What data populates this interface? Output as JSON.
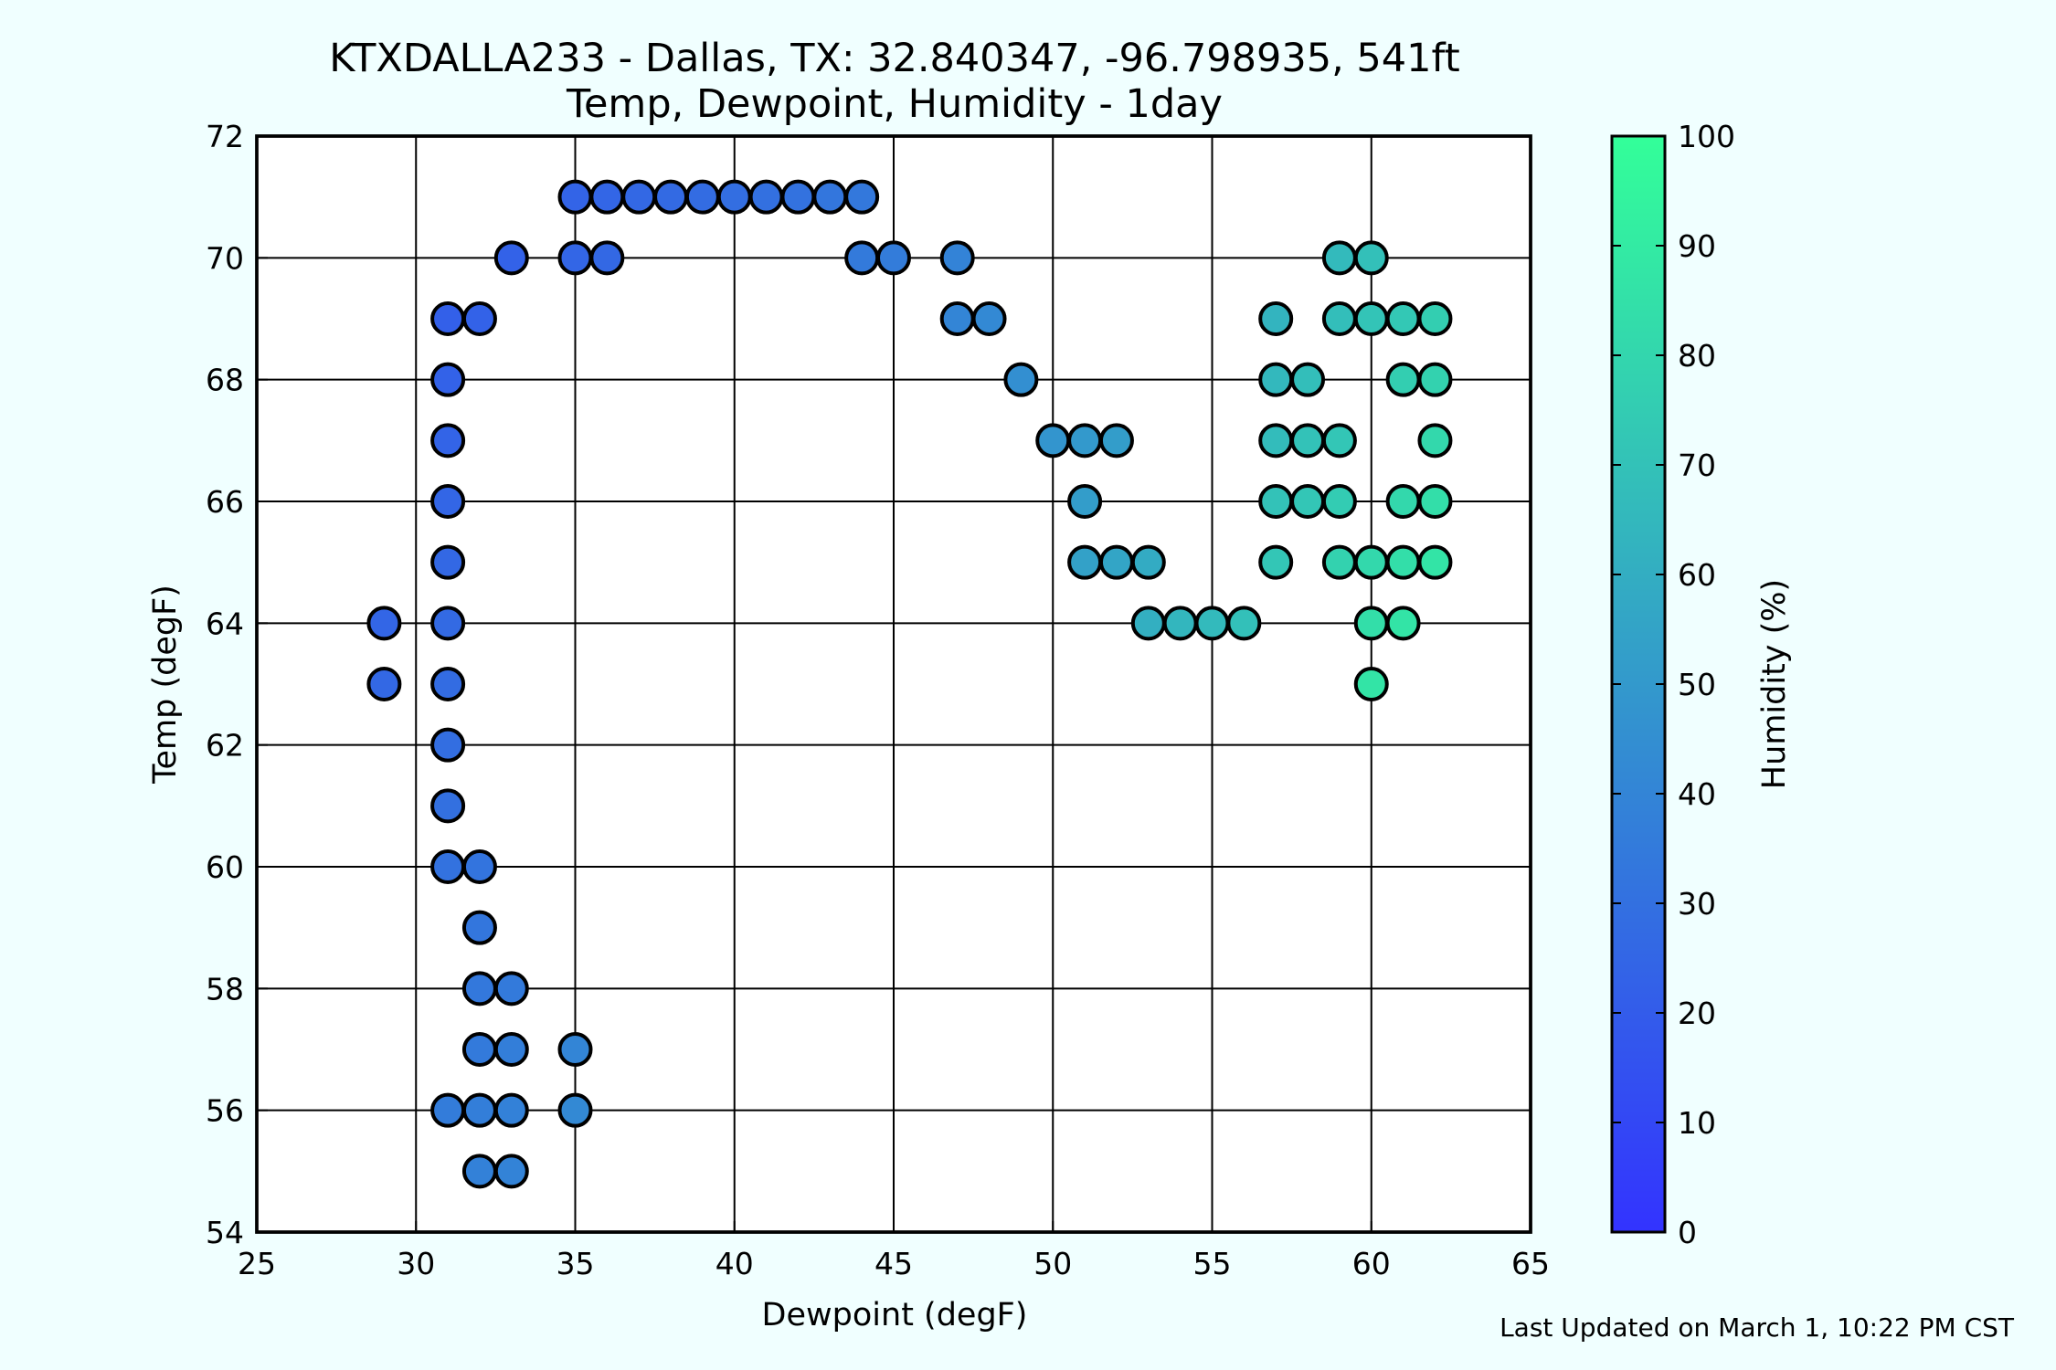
{
  "chart_data": {
    "type": "scatter",
    "title_line1": "KTXDALLA233 - Dallas, TX: 32.840347, -96.798935, 541ft",
    "title_line2": "Temp, Dewpoint, Humidity - 1day",
    "xlabel": "Dewpoint (degF)",
    "ylabel": "Temp (degF)",
    "xlim": [
      25,
      65
    ],
    "ylim": [
      54,
      72
    ],
    "xticks": [
      25,
      30,
      35,
      40,
      45,
      50,
      55,
      60,
      65
    ],
    "yticks": [
      54,
      56,
      58,
      60,
      62,
      64,
      66,
      68,
      70,
      72
    ],
    "grid": true,
    "colorbar": {
      "label": "Humidity (%)",
      "range": [
        0,
        100
      ],
      "ticks": [
        0,
        10,
        20,
        30,
        40,
        50,
        60,
        70,
        80,
        90,
        100
      ],
      "color_low": "#3333ff",
      "color_high": "#33ff99"
    },
    "points": [
      {
        "x": 35,
        "y": 71,
        "h": 24
      },
      {
        "x": 36,
        "y": 71,
        "h": 25
      },
      {
        "x": 37,
        "y": 71,
        "h": 26
      },
      {
        "x": 38,
        "y": 71,
        "h": 27
      },
      {
        "x": 39,
        "y": 71,
        "h": 28
      },
      {
        "x": 40,
        "y": 71,
        "h": 29
      },
      {
        "x": 41,
        "y": 71,
        "h": 30
      },
      {
        "x": 42,
        "y": 71,
        "h": 31
      },
      {
        "x": 43,
        "y": 71,
        "h": 33
      },
      {
        "x": 44,
        "y": 71,
        "h": 34
      },
      {
        "x": 33,
        "y": 70,
        "h": 23
      },
      {
        "x": 35,
        "y": 70,
        "h": 25
      },
      {
        "x": 36,
        "y": 70,
        "h": 26
      },
      {
        "x": 44,
        "y": 70,
        "h": 35
      },
      {
        "x": 45,
        "y": 70,
        "h": 36
      },
      {
        "x": 47,
        "y": 70,
        "h": 39
      },
      {
        "x": 59,
        "y": 70,
        "h": 66
      },
      {
        "x": 60,
        "y": 70,
        "h": 69
      },
      {
        "x": 31,
        "y": 69,
        "h": 22
      },
      {
        "x": 32,
        "y": 69,
        "h": 23
      },
      {
        "x": 47,
        "y": 69,
        "h": 40
      },
      {
        "x": 48,
        "y": 69,
        "h": 42
      },
      {
        "x": 57,
        "y": 69,
        "h": 63
      },
      {
        "x": 59,
        "y": 69,
        "h": 68
      },
      {
        "x": 60,
        "y": 69,
        "h": 71
      },
      {
        "x": 61,
        "y": 69,
        "h": 73
      },
      {
        "x": 62,
        "y": 69,
        "h": 76
      },
      {
        "x": 31,
        "y": 68,
        "h": 23
      },
      {
        "x": 49,
        "y": 68,
        "h": 45
      },
      {
        "x": 57,
        "y": 68,
        "h": 65
      },
      {
        "x": 58,
        "y": 68,
        "h": 68
      },
      {
        "x": 61,
        "y": 68,
        "h": 76
      },
      {
        "x": 62,
        "y": 68,
        "h": 78
      },
      {
        "x": 31,
        "y": 67,
        "h": 24
      },
      {
        "x": 50,
        "y": 67,
        "h": 48
      },
      {
        "x": 51,
        "y": 67,
        "h": 50
      },
      {
        "x": 52,
        "y": 67,
        "h": 52
      },
      {
        "x": 57,
        "y": 67,
        "h": 67
      },
      {
        "x": 58,
        "y": 67,
        "h": 70
      },
      {
        "x": 59,
        "y": 67,
        "h": 72
      },
      {
        "x": 62,
        "y": 67,
        "h": 81
      },
      {
        "x": 31,
        "y": 66,
        "h": 25
      },
      {
        "x": 51,
        "y": 66,
        "h": 52
      },
      {
        "x": 57,
        "y": 66,
        "h": 70
      },
      {
        "x": 58,
        "y": 66,
        "h": 72
      },
      {
        "x": 59,
        "y": 66,
        "h": 75
      },
      {
        "x": 61,
        "y": 66,
        "h": 81
      },
      {
        "x": 62,
        "y": 66,
        "h": 84
      },
      {
        "x": 31,
        "y": 65,
        "h": 26
      },
      {
        "x": 51,
        "y": 65,
        "h": 54
      },
      {
        "x": 52,
        "y": 65,
        "h": 56
      },
      {
        "x": 53,
        "y": 65,
        "h": 59
      },
      {
        "x": 57,
        "y": 65,
        "h": 72
      },
      {
        "x": 59,
        "y": 65,
        "h": 78
      },
      {
        "x": 60,
        "y": 65,
        "h": 81
      },
      {
        "x": 61,
        "y": 65,
        "h": 84
      },
      {
        "x": 62,
        "y": 65,
        "h": 87
      },
      {
        "x": 29,
        "y": 64,
        "h": 25
      },
      {
        "x": 31,
        "y": 64,
        "h": 27
      },
      {
        "x": 53,
        "y": 64,
        "h": 61
      },
      {
        "x": 54,
        "y": 64,
        "h": 64
      },
      {
        "x": 55,
        "y": 64,
        "h": 66
      },
      {
        "x": 56,
        "y": 64,
        "h": 69
      },
      {
        "x": 60,
        "y": 64,
        "h": 84
      },
      {
        "x": 61,
        "y": 64,
        "h": 87
      },
      {
        "x": 29,
        "y": 63,
        "h": 26
      },
      {
        "x": 31,
        "y": 63,
        "h": 28
      },
      {
        "x": 60,
        "y": 63,
        "h": 87
      },
      {
        "x": 31,
        "y": 62,
        "h": 29
      },
      {
        "x": 31,
        "y": 61,
        "h": 30
      },
      {
        "x": 31,
        "y": 60,
        "h": 31
      },
      {
        "x": 32,
        "y": 60,
        "h": 32
      },
      {
        "x": 32,
        "y": 59,
        "h": 33
      },
      {
        "x": 32,
        "y": 58,
        "h": 34
      },
      {
        "x": 33,
        "y": 58,
        "h": 35
      },
      {
        "x": 32,
        "y": 57,
        "h": 35
      },
      {
        "x": 33,
        "y": 57,
        "h": 37
      },
      {
        "x": 35,
        "y": 57,
        "h": 40
      },
      {
        "x": 31,
        "y": 56,
        "h": 36
      },
      {
        "x": 32,
        "y": 56,
        "h": 37
      },
      {
        "x": 33,
        "y": 56,
        "h": 38
      },
      {
        "x": 35,
        "y": 56,
        "h": 42
      },
      {
        "x": 32,
        "y": 55,
        "h": 38
      },
      {
        "x": 33,
        "y": 55,
        "h": 39
      }
    ]
  },
  "footer": {
    "last_updated": "Last Updated on March 1, 10:22 PM CST"
  },
  "colors": {
    "background": "#f0ffff",
    "plot_area": "#ffffff"
  }
}
